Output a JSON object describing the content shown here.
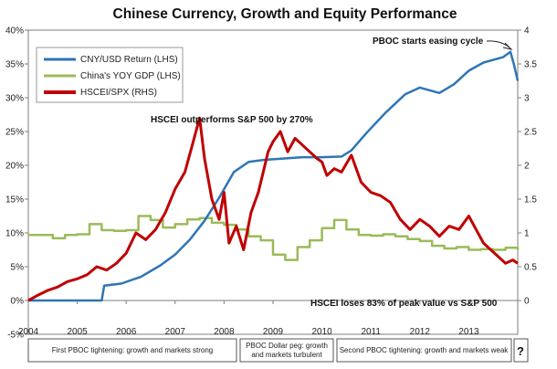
{
  "chart_data": {
    "type": "line",
    "title": "Chinese Currency, Growth and Equity Performance",
    "x_ticks": [
      "2004",
      "2005",
      "2006",
      "2007",
      "2008",
      "2009",
      "2010",
      "2011",
      "2012",
      "2013"
    ],
    "xlim": [
      2004,
      2014
    ],
    "left_axis": {
      "ticks": [
        "40%",
        "35%",
        "30%",
        "25%",
        "20%",
        "15%",
        "10%",
        "5%",
        "0%",
        "-5%"
      ],
      "ylim": [
        -0.05,
        0.4
      ]
    },
    "right_axis": {
      "ticks": [
        "4",
        "3.5",
        "3",
        "2.5",
        "2",
        "1.5",
        "1",
        "0.5",
        "0"
      ],
      "ylim": [
        -0.5,
        4.0
      ]
    },
    "legend": {
      "position": "top-left",
      "items": [
        {
          "label": "CNY/USD Return (LHS)",
          "color": "#2e75b6"
        },
        {
          "label": "China's YOY GDP (LHS)",
          "color": "#9bbb59"
        },
        {
          "label": "HSCEI/SPX (RHS)",
          "color": "#c00000"
        }
      ]
    },
    "series": [
      {
        "name": "CNY/USD Return (LHS)",
        "axis": "left",
        "color": "#2e75b6",
        "x": [
          2004.0,
          2005.5,
          2005.55,
          2005.9,
          2006.3,
          2006.7,
          2007.0,
          2007.3,
          2007.6,
          2007.9,
          2008.2,
          2008.5,
          2008.8,
          2009.2,
          2009.6,
          2010.0,
          2010.4,
          2010.6,
          2010.9,
          2011.3,
          2011.7,
          2012.0,
          2012.4,
          2012.7,
          2013.0,
          2013.3,
          2013.7,
          2013.85,
          2013.92,
          2014.0
        ],
        "y": [
          0.0,
          0.0,
          0.022,
          0.025,
          0.035,
          0.052,
          0.068,
          0.09,
          0.118,
          0.152,
          0.19,
          0.205,
          0.208,
          0.21,
          0.212,
          0.212,
          0.213,
          0.222,
          0.247,
          0.278,
          0.305,
          0.315,
          0.307,
          0.32,
          0.34,
          0.352,
          0.36,
          0.368,
          0.35,
          0.325
        ]
      },
      {
        "name": "China's YOY GDP (LHS)",
        "axis": "left",
        "color": "#9bbb59",
        "x": [
          2004.0,
          2004.5,
          2004.75,
          2005.0,
          2005.25,
          2005.5,
          2005.75,
          2006.0,
          2006.25,
          2006.5,
          2006.75,
          2007.0,
          2007.25,
          2007.5,
          2007.75,
          2008.0,
          2008.25,
          2008.5,
          2008.75,
          2009.0,
          2009.25,
          2009.5,
          2009.75,
          2010.0,
          2010.25,
          2010.5,
          2010.75,
          2011.0,
          2011.25,
          2011.5,
          2011.75,
          2012.0,
          2012.25,
          2012.5,
          2012.75,
          2013.0,
          2013.25,
          2013.5,
          2013.75,
          2014.0
        ],
        "y": [
          0.097,
          0.092,
          0.097,
          0.098,
          0.113,
          0.104,
          0.103,
          0.104,
          0.125,
          0.119,
          0.108,
          0.113,
          0.12,
          0.122,
          0.115,
          0.112,
          0.105,
          0.095,
          0.089,
          0.068,
          0.06,
          0.079,
          0.089,
          0.107,
          0.119,
          0.105,
          0.097,
          0.096,
          0.098,
          0.095,
          0.091,
          0.088,
          0.081,
          0.077,
          0.079,
          0.075,
          0.076,
          0.075,
          0.078,
          0.075
        ]
      },
      {
        "name": "HSCEI/SPX (RHS)",
        "axis": "right",
        "color": "#c00000",
        "x": [
          2004.0,
          2004.2,
          2004.4,
          2004.6,
          2004.8,
          2005.0,
          2005.2,
          2005.4,
          2005.6,
          2005.8,
          2006.0,
          2006.2,
          2006.4,
          2006.6,
          2006.8,
          2007.0,
          2007.2,
          2007.35,
          2007.5,
          2007.6,
          2007.75,
          2007.9,
          2008.0,
          2008.1,
          2008.25,
          2008.4,
          2008.55,
          2008.7,
          2008.8,
          2008.9,
          2009.0,
          2009.15,
          2009.3,
          2009.45,
          2009.6,
          2009.75,
          2009.9,
          2010.0,
          2010.1,
          2010.25,
          2010.4,
          2010.6,
          2010.8,
          2011.0,
          2011.2,
          2011.4,
          2011.6,
          2011.8,
          2012.0,
          2012.2,
          2012.4,
          2012.6,
          2012.8,
          2013.0,
          2013.15,
          2013.3,
          2013.45,
          2013.6,
          2013.75,
          2013.9,
          2014.0
        ],
        "y": [
          0.0,
          0.08,
          0.15,
          0.2,
          0.28,
          0.32,
          0.38,
          0.5,
          0.45,
          0.55,
          0.7,
          1.0,
          0.9,
          1.05,
          1.3,
          1.65,
          1.9,
          2.3,
          2.7,
          2.1,
          1.5,
          1.2,
          1.6,
          0.85,
          1.1,
          0.75,
          1.3,
          1.6,
          1.9,
          2.2,
          2.35,
          2.5,
          2.2,
          2.4,
          2.3,
          2.2,
          2.1,
          2.05,
          1.85,
          1.95,
          1.9,
          2.15,
          1.75,
          1.6,
          1.55,
          1.45,
          1.2,
          1.05,
          1.2,
          1.1,
          0.95,
          1.1,
          1.05,
          1.25,
          1.05,
          0.85,
          0.75,
          0.65,
          0.55,
          0.6,
          0.55
        ]
      }
    ],
    "annotations": [
      {
        "text": "PBOC starts easing cycle"
      },
      {
        "text": "HSCEI  outperforms S&P 500 by 270%"
      },
      {
        "text": "HSCEI  loses 83% of peak value vs S&P 500"
      }
    ],
    "periods": [
      {
        "label_line1": "First PBOC tightening: growth and markets strong",
        "label_line2": ""
      },
      {
        "label_line1": "PBOC Dollar peg: growth",
        "label_line2": "and markets turbulent"
      },
      {
        "label_line1": "Second PBOC tightening: growth and markets  weak",
        "label_line2": ""
      }
    ],
    "period_end_marker": "?",
    "grid": false
  }
}
